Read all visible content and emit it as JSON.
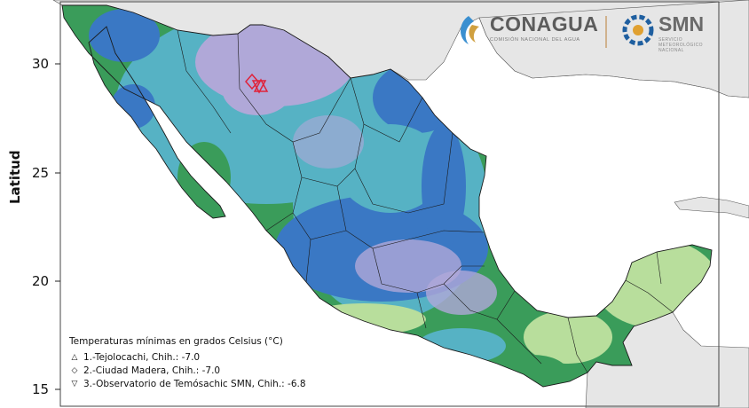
{
  "map": {
    "y_axis_label": "Latitud",
    "y_ticks": [
      "30",
      "25",
      "20",
      "15"
    ],
    "lat_range": [
      14.5,
      32.7
    ],
    "lon_range": [
      -118.5,
      -85.5
    ],
    "colors": {
      "sea": "#ffffff",
      "land_outside": "#e6e6e6",
      "very_cold_lavender": "#b0a8d8",
      "cold_blue": "#3a78c4",
      "cool_teal": "#56b2c4",
      "mild_green": "#3a9c5a",
      "warm_lightgreen": "#b8de9c",
      "border": "#1a1a1a",
      "marker": "#e0223a"
    }
  },
  "legend": {
    "title": "Temperaturas mínimas en grados Celsius (°C)",
    "items": [
      {
        "symbol": "triangle-up-icon",
        "glyph": "△",
        "text": "1.-Tejolocachi, Chih.: -7.0"
      },
      {
        "symbol": "diamond-icon",
        "glyph": "◇",
        "text": "2.-Ciudad Madera, Chih.: -7.0"
      },
      {
        "symbol": "triangle-down-icon",
        "glyph": "▽",
        "text": "3.-Observatorio de Temósachic SMN, Chih.: -6.8"
      }
    ]
  },
  "stations": [
    {
      "id": "1",
      "name": "Tejolocachi",
      "lat": 28.8,
      "lon": -107.5,
      "marker": "triangle-up"
    },
    {
      "id": "2",
      "name": "Ciudad Madera",
      "lat": 29.2,
      "lon": -108.1,
      "marker": "diamond"
    },
    {
      "id": "3",
      "name": "Observatorio de Temósachic SMN",
      "lat": 28.95,
      "lon": -107.8,
      "marker": "triangle-down"
    }
  ],
  "logos": {
    "conagua_name": "CONAGUA",
    "conagua_sub": "COMISIÓN NACIONAL DEL AGUA",
    "smn_name": "SMN",
    "smn_sub": "SERVICIO METEOROLÓGICO NACIONAL"
  }
}
